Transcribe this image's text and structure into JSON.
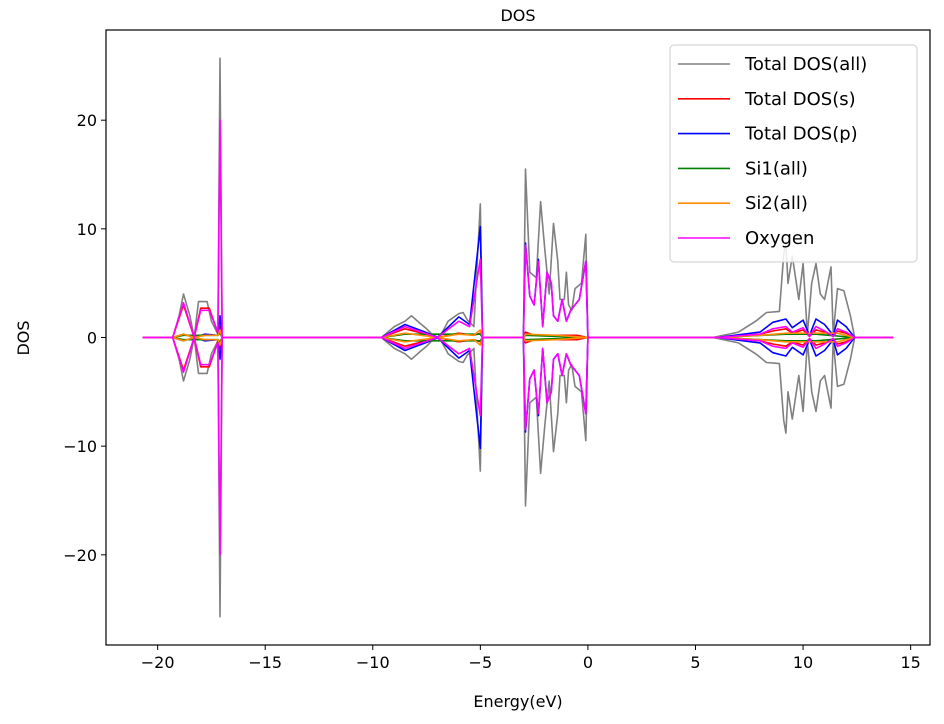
{
  "chart_data": {
    "type": "line",
    "title": "DOS",
    "xlabel": "Energy(eV)",
    "ylabel": "DOS",
    "xlim": [
      -22.4,
      15.9
    ],
    "ylim": [
      -28.3,
      28.3
    ],
    "xticks": [
      -20,
      -15,
      -10,
      -5,
      0,
      5,
      10,
      15
    ],
    "yticks": [
      -20,
      -10,
      0,
      10,
      20
    ],
    "xtick_labels": [
      "−20",
      "−15",
      "−10",
      "−5",
      "0",
      "5",
      "10",
      "15"
    ],
    "ytick_labels": [
      "−20",
      "−10",
      "0",
      "10",
      "20"
    ],
    "grid": false,
    "legend_position": "top-right",
    "spin_mirrored": true,
    "series": [
      {
        "name": "Total DOS(all)",
        "color": "#808080",
        "points": [
          [
            -20.7,
            0
          ],
          [
            -19.3,
            0
          ],
          [
            -19.0,
            2
          ],
          [
            -18.8,
            4
          ],
          [
            -18.5,
            2
          ],
          [
            -18.3,
            0
          ],
          [
            -18.1,
            3.3
          ],
          [
            -17.7,
            3.3
          ],
          [
            -17.5,
            1.5
          ],
          [
            -17.2,
            0.3
          ],
          [
            -17.1,
            25.7
          ],
          [
            -17.0,
            0
          ],
          [
            -9.6,
            0
          ],
          [
            -9.0,
            1
          ],
          [
            -8.5,
            1.5
          ],
          [
            -8.2,
            2
          ],
          [
            -7.8,
            1.3
          ],
          [
            -7.5,
            0.8
          ],
          [
            -7.2,
            0.2
          ],
          [
            -6.9,
            0
          ],
          [
            -6.5,
            1.5
          ],
          [
            -6.0,
            2.2
          ],
          [
            -5.8,
            2.3
          ],
          [
            -5.6,
            1.6
          ],
          [
            -5.3,
            1.0
          ],
          [
            -5.0,
            12.3
          ],
          [
            -4.9,
            0
          ],
          [
            -3.0,
            0
          ],
          [
            -2.9,
            15.5
          ],
          [
            -2.7,
            6
          ],
          [
            -2.4,
            5.5
          ],
          [
            -2.2,
            12.5
          ],
          [
            -2.0,
            8
          ],
          [
            -1.8,
            4
          ],
          [
            -1.6,
            10.5
          ],
          [
            -1.4,
            7
          ],
          [
            -1.3,
            3.5
          ],
          [
            -1.1,
            3.5
          ],
          [
            -1.0,
            6
          ],
          [
            -0.9,
            3
          ],
          [
            -0.75,
            2.5
          ],
          [
            -0.6,
            4.5
          ],
          [
            -0.3,
            5
          ],
          [
            -0.1,
            9.5
          ],
          [
            0.0,
            0
          ],
          [
            5.8,
            0
          ],
          [
            7.0,
            0.5
          ],
          [
            7.8,
            1.5
          ],
          [
            8.3,
            2.3
          ],
          [
            8.9,
            2.4
          ],
          [
            9.1,
            7.6
          ],
          [
            9.2,
            8.8
          ],
          [
            9.3,
            5
          ],
          [
            9.5,
            7.5
          ],
          [
            9.8,
            3.5
          ],
          [
            10.0,
            6.8
          ],
          [
            10.2,
            0.3
          ],
          [
            10.4,
            5
          ],
          [
            10.6,
            6.8
          ],
          [
            10.8,
            4
          ],
          [
            11.0,
            3.5
          ],
          [
            11.3,
            6.5
          ],
          [
            11.4,
            0.3
          ],
          [
            11.6,
            4.5
          ],
          [
            11.9,
            4.3
          ],
          [
            12.2,
            2
          ],
          [
            12.4,
            0
          ],
          [
            14.2,
            0
          ]
        ]
      },
      {
        "name": "Total DOS(s)",
        "color": "#ff0000",
        "points": [
          [
            -20.7,
            0
          ],
          [
            -19.3,
            0
          ],
          [
            -18.8,
            3.0
          ],
          [
            -18.3,
            0
          ],
          [
            -18.0,
            2.7
          ],
          [
            -17.6,
            2.7
          ],
          [
            -17.2,
            0.4
          ],
          [
            -17.1,
            1
          ],
          [
            -17.0,
            0
          ],
          [
            -9.6,
            0
          ],
          [
            -8.5,
            0.8
          ],
          [
            -7.3,
            0.2
          ],
          [
            -7.0,
            0
          ],
          [
            -6.0,
            0.4
          ],
          [
            -5.3,
            0.2
          ],
          [
            -5.0,
            0.4
          ],
          [
            -4.9,
            0
          ],
          [
            -3.0,
            0
          ],
          [
            -2.9,
            0.5
          ],
          [
            -2.5,
            0.2
          ],
          [
            -1.5,
            0.2
          ],
          [
            -0.5,
            0.2
          ],
          [
            0,
            0
          ],
          [
            6,
            0
          ],
          [
            8,
            0.3
          ],
          [
            8.6,
            0.6
          ],
          [
            9.2,
            0.8
          ],
          [
            9.5,
            0.4
          ],
          [
            10,
            0.7
          ],
          [
            10.3,
            0.1
          ],
          [
            10.6,
            0.7
          ],
          [
            11,
            0.5
          ],
          [
            11.4,
            0.1
          ],
          [
            11.6,
            0.6
          ],
          [
            12,
            0.4
          ],
          [
            12.4,
            0
          ],
          [
            14.2,
            0
          ]
        ]
      },
      {
        "name": "Total DOS(p)",
        "color": "#0000ff",
        "points": [
          [
            -20.7,
            0
          ],
          [
            -19.3,
            0
          ],
          [
            -18.8,
            0.3
          ],
          [
            -18.3,
            0
          ],
          [
            -17.8,
            0.3
          ],
          [
            -17.2,
            0.2
          ],
          [
            -17.1,
            2
          ],
          [
            -17.0,
            0
          ],
          [
            -9.6,
            0
          ],
          [
            -8.5,
            1.2
          ],
          [
            -7.3,
            0.3
          ],
          [
            -7.0,
            0
          ],
          [
            -6.0,
            1.9
          ],
          [
            -5.5,
            1.2
          ],
          [
            -5.0,
            10.2
          ],
          [
            -4.9,
            0
          ],
          [
            -3.0,
            0
          ],
          [
            -2.9,
            8.7
          ],
          [
            -2.7,
            3.8
          ],
          [
            -2.5,
            3.0
          ],
          [
            -2.3,
            7.2
          ],
          [
            -2.1,
            1
          ],
          [
            -1.9,
            6
          ],
          [
            -1.7,
            5.0
          ],
          [
            -1.6,
            2
          ],
          [
            -1.4,
            1.5
          ],
          [
            -1.2,
            3.5
          ],
          [
            -1.0,
            1.5
          ],
          [
            -0.8,
            2.5
          ],
          [
            -0.4,
            3.5
          ],
          [
            -0.1,
            7
          ],
          [
            0,
            0
          ],
          [
            6,
            0
          ],
          [
            8,
            0.5
          ],
          [
            8.6,
            1.4
          ],
          [
            9.2,
            1.7
          ],
          [
            9.5,
            0.9
          ],
          [
            10,
            1.6
          ],
          [
            10.3,
            0.2
          ],
          [
            10.6,
            1.7
          ],
          [
            11,
            1.2
          ],
          [
            11.4,
            0.2
          ],
          [
            11.6,
            1.6
          ],
          [
            12,
            1.0
          ],
          [
            12.4,
            0
          ],
          [
            14.2,
            0
          ]
        ]
      },
      {
        "name": "Si1(all)",
        "color": "#008000",
        "points": [
          [
            -20.7,
            0
          ],
          [
            -19.3,
            0
          ],
          [
            -18.8,
            0.2
          ],
          [
            -17.2,
            0.2
          ],
          [
            -17.1,
            0.4
          ],
          [
            -17.0,
            0
          ],
          [
            -9.6,
            0
          ],
          [
            -8.5,
            0.3
          ],
          [
            -6.0,
            0.3
          ],
          [
            -5.0,
            0.3
          ],
          [
            -4.9,
            0
          ],
          [
            -3.0,
            0
          ],
          [
            -2.9,
            0.2
          ],
          [
            0,
            0
          ],
          [
            6,
            0
          ],
          [
            9.2,
            0.3
          ],
          [
            10.6,
            0.3
          ],
          [
            12.4,
            0
          ],
          [
            14.2,
            0
          ]
        ]
      },
      {
        "name": "Si2(all)",
        "color": "#ff8c00",
        "points": [
          [
            -20.7,
            0
          ],
          [
            -19.3,
            0
          ],
          [
            -18.8,
            0.3
          ],
          [
            -18.3,
            0
          ],
          [
            -17.8,
            0.2
          ],
          [
            -17.2,
            0.2
          ],
          [
            -17.1,
            0.7
          ],
          [
            -17.0,
            0
          ],
          [
            -9.6,
            0
          ],
          [
            -8.5,
            0.4
          ],
          [
            -7.0,
            0
          ],
          [
            -6.0,
            0.3
          ],
          [
            -5.3,
            0.2
          ],
          [
            -5.0,
            0.7
          ],
          [
            -4.9,
            0
          ],
          [
            -3.0,
            0
          ],
          [
            -2.9,
            0.3
          ],
          [
            -1.5,
            0.2
          ],
          [
            0,
            0
          ],
          [
            6,
            0
          ],
          [
            8,
            0.2
          ],
          [
            9.2,
            0.4
          ],
          [
            10.6,
            0.4
          ],
          [
            11.6,
            0.4
          ],
          [
            12.4,
            0
          ],
          [
            14.2,
            0
          ]
        ]
      },
      {
        "name": "Oxygen",
        "color": "#ff00ff",
        "points": [
          [
            -20.7,
            0
          ],
          [
            -19.3,
            0
          ],
          [
            -18.8,
            3.2
          ],
          [
            -18.3,
            0
          ],
          [
            -18.0,
            2.5
          ],
          [
            -17.6,
            2.5
          ],
          [
            -17.2,
            0.5
          ],
          [
            -17.1,
            20
          ],
          [
            -17.0,
            0
          ],
          [
            -9.6,
            0
          ],
          [
            -8.5,
            1
          ],
          [
            -7.3,
            0.2
          ],
          [
            -7.0,
            0
          ],
          [
            -6.0,
            1.5
          ],
          [
            -5.5,
            1
          ],
          [
            -5.0,
            7.2
          ],
          [
            -4.9,
            0
          ],
          [
            -3.0,
            0
          ],
          [
            -2.9,
            8.5
          ],
          [
            -2.7,
            3.8
          ],
          [
            -2.5,
            3.0
          ],
          [
            -2.3,
            7
          ],
          [
            -2.1,
            1
          ],
          [
            -1.9,
            6
          ],
          [
            -1.7,
            5.0
          ],
          [
            -1.6,
            2
          ],
          [
            -1.4,
            1.5
          ],
          [
            -1.2,
            3.5
          ],
          [
            -1.0,
            1.5
          ],
          [
            -0.8,
            2.5
          ],
          [
            -0.4,
            3.5
          ],
          [
            -0.1,
            7
          ],
          [
            0,
            0
          ],
          [
            6,
            0
          ],
          [
            8,
            0.3
          ],
          [
            8.6,
            0.8
          ],
          [
            9.2,
            1.0
          ],
          [
            9.5,
            0.5
          ],
          [
            10,
            0.9
          ],
          [
            10.3,
            0.1
          ],
          [
            10.6,
            1
          ],
          [
            11,
            0.6
          ],
          [
            11.4,
            0.1
          ],
          [
            11.6,
            0.8
          ],
          [
            12,
            0.5
          ],
          [
            12.4,
            0
          ],
          [
            14.2,
            0
          ]
        ]
      }
    ]
  }
}
